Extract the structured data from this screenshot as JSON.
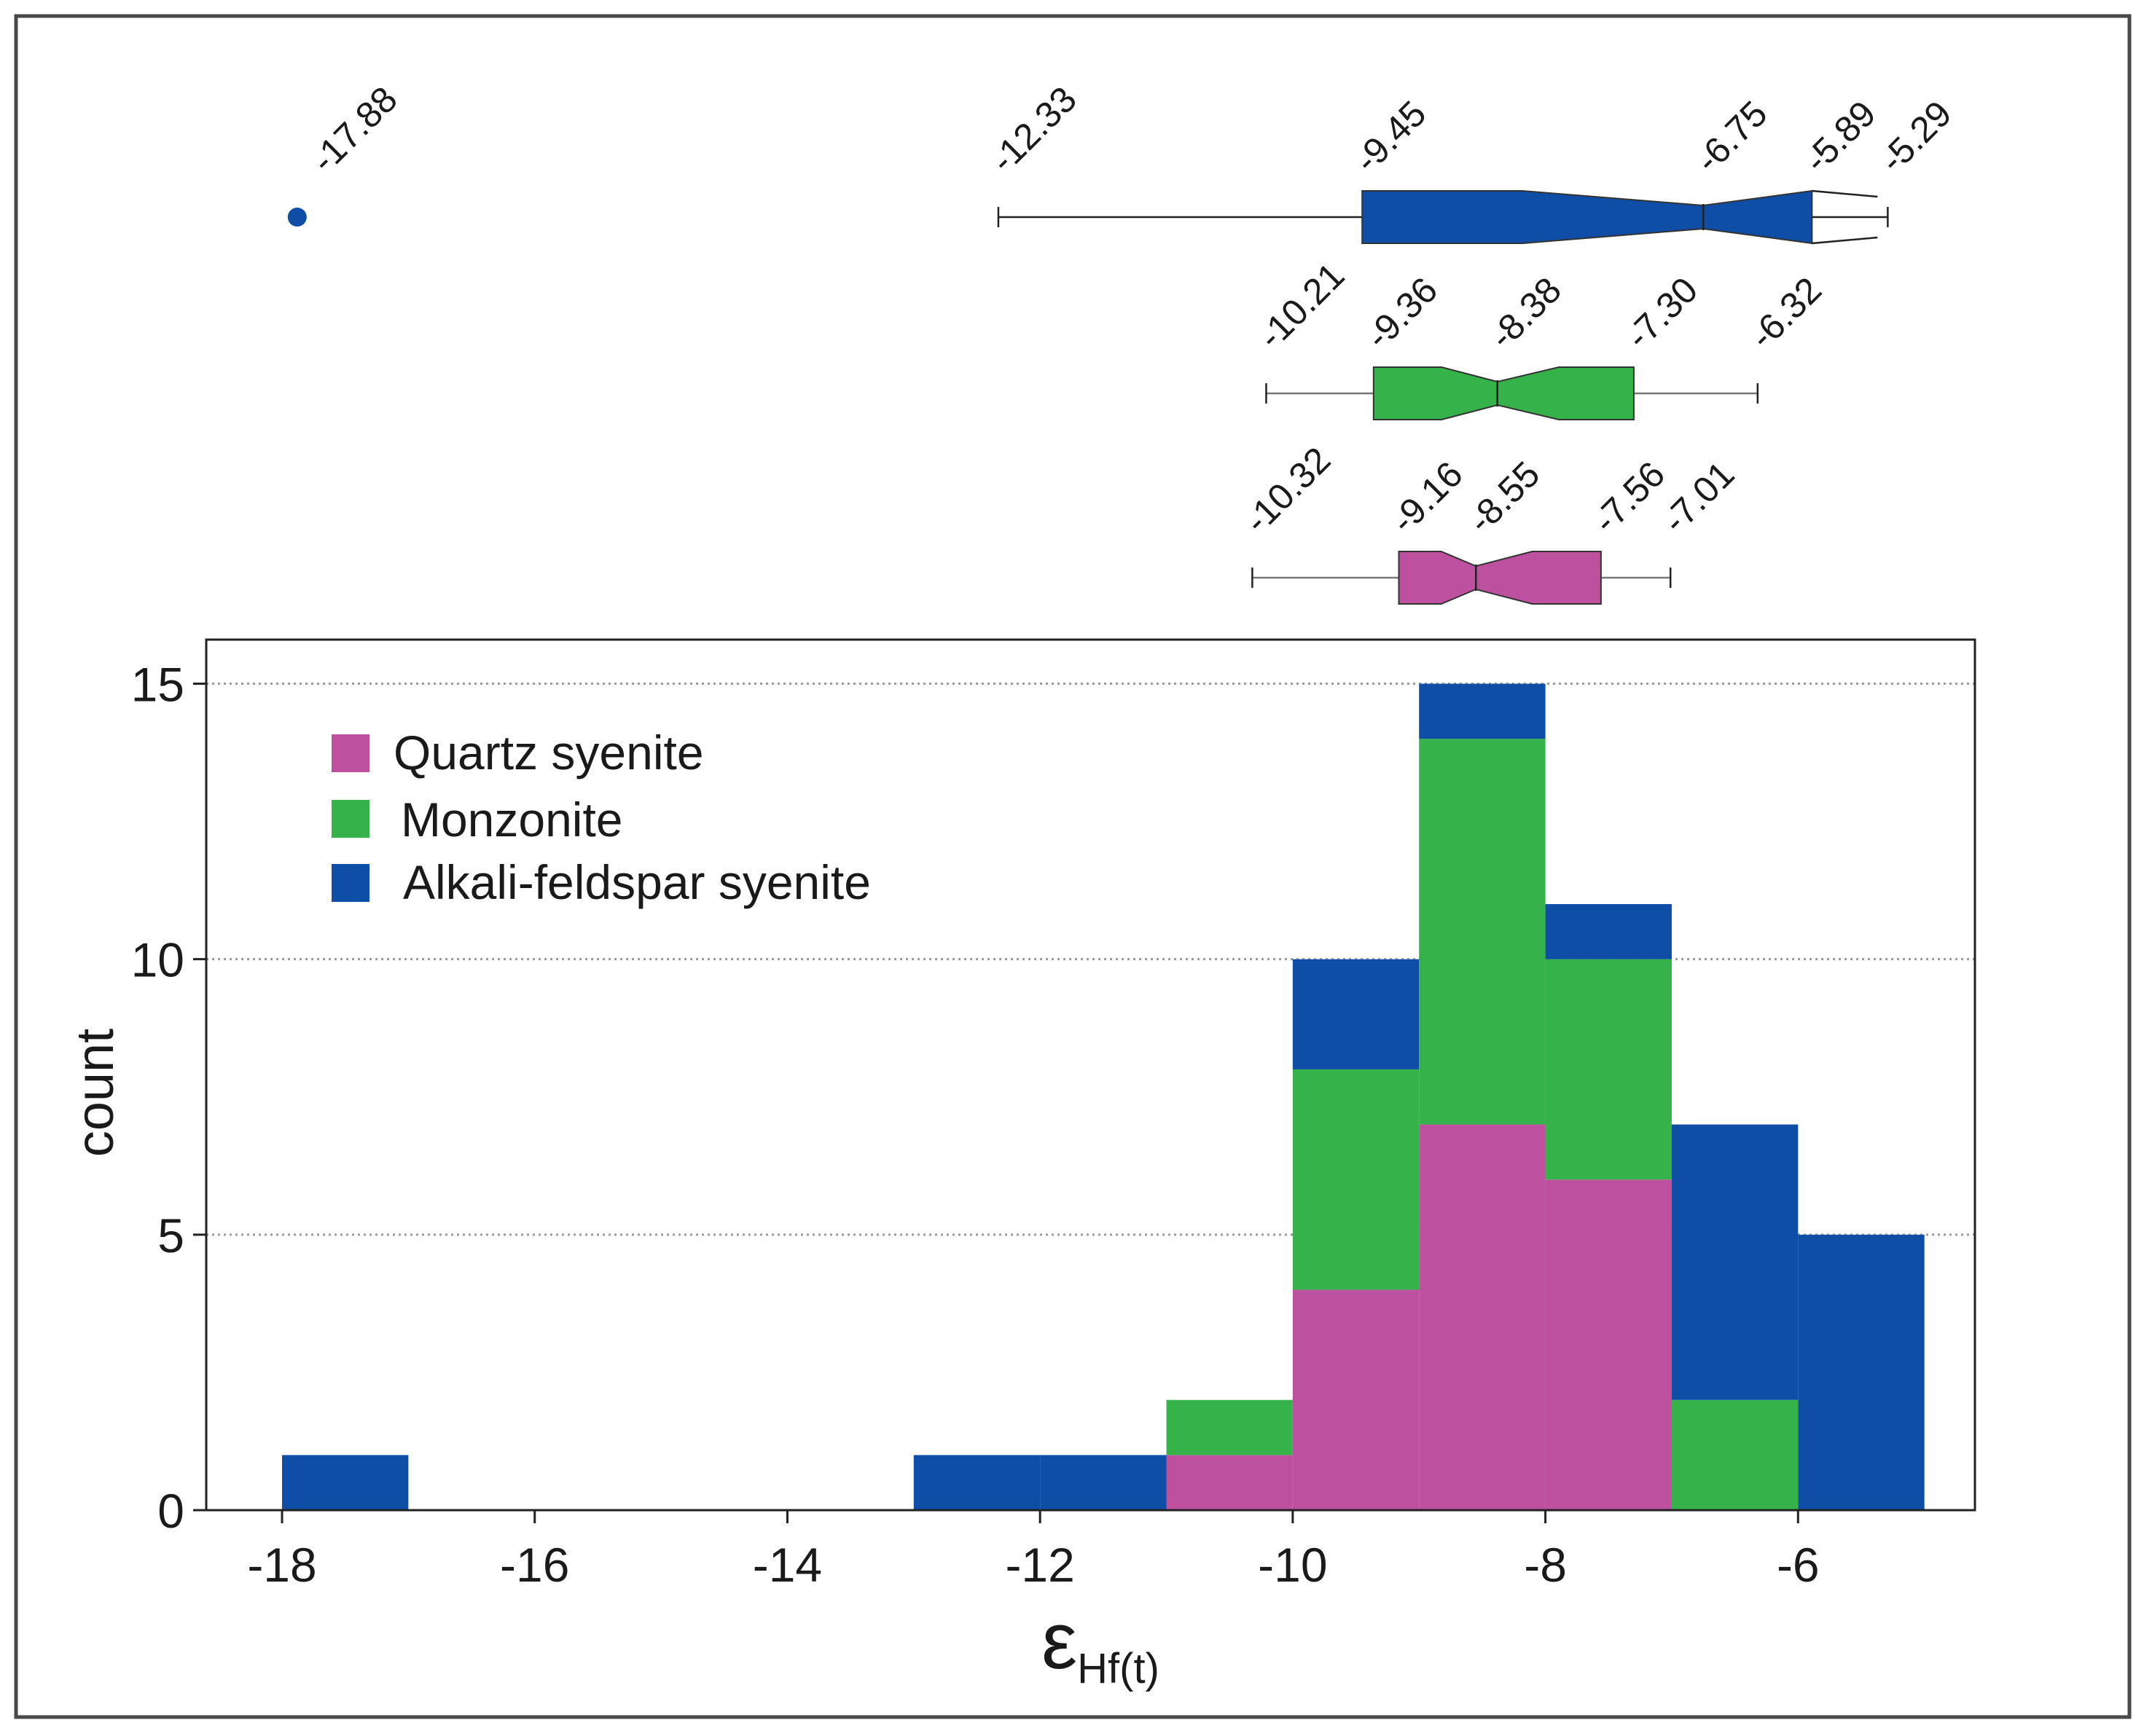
{
  "chart_data": {
    "type": "histogram-stacked-with-notched-boxplots",
    "bin_edges": [
      -18,
      -17,
      -16,
      -15,
      -14,
      -13,
      -12,
      -11,
      -10,
      -9,
      -8,
      -7,
      -6,
      -5
    ],
    "series": [
      {
        "name": "Quartz syenite",
        "color": "#bd519f",
        "counts": [
          0,
          0,
          0,
          0,
          0,
          0,
          0,
          1,
          4,
          7,
          6,
          0,
          0
        ]
      },
      {
        "name": "Monzonite",
        "color": "#35b24a",
        "counts": [
          0,
          0,
          0,
          0,
          0,
          0,
          0,
          1,
          4,
          7,
          4,
          2,
          0
        ]
      },
      {
        "name": "Alkali-feldspar syenite",
        "color": "#0e4ea6",
        "counts": [
          1,
          0,
          0,
          0,
          0,
          1,
          1,
          0,
          2,
          1,
          1,
          5,
          5
        ]
      }
    ],
    "xlabel_main": "ε",
    "xlabel_sub": "Hf(t)",
    "ylabel": "count",
    "xlim": [
      -18.6,
      -4.6
    ],
    "ylim": [
      0,
      15.8
    ],
    "xticks": [
      -18,
      -16,
      -14,
      -12,
      -10,
      -8,
      -6
    ],
    "xtick_labels": [
      "-18",
      "-16",
      "-14",
      "-12",
      "-10",
      "-8",
      "-6"
    ],
    "yticks": [
      0,
      5,
      10,
      15
    ],
    "ytick_labels": [
      "0",
      "5",
      "10",
      "15"
    ],
    "grid": "horizontal dotted",
    "legend_position": "top-left",
    "boxplots": [
      {
        "name": "Alkali-feldspar syenite",
        "color": "#0e4ea6",
        "whisker_low": -12.33,
        "q1": -9.45,
        "median": -6.75,
        "notch_upper": -5.89,
        "whisker_high": -5.29,
        "labels": [
          "-12.33",
          "-9.45",
          "-6.75",
          "-5.89",
          "-5.29"
        ],
        "outlier": {
          "value": -17.88,
          "label": "-17.88"
        }
      },
      {
        "name": "Monzonite",
        "color": "#35b24a",
        "whisker_low": -10.21,
        "q1": -9.36,
        "median": -8.38,
        "q3": -7.3,
        "whisker_high": -6.32,
        "labels": [
          "-10.21",
          "-9.36",
          "-8.38",
          "-7.30",
          "-6.32"
        ]
      },
      {
        "name": "Quartz syenite",
        "color": "#bd519f",
        "whisker_low": -10.32,
        "q1": -9.16,
        "median": -8.55,
        "q3": -7.56,
        "whisker_high": -7.01,
        "labels": [
          "-10.32",
          "-9.16",
          "-8.55",
          "-7.56",
          "-7.01"
        ]
      }
    ]
  }
}
